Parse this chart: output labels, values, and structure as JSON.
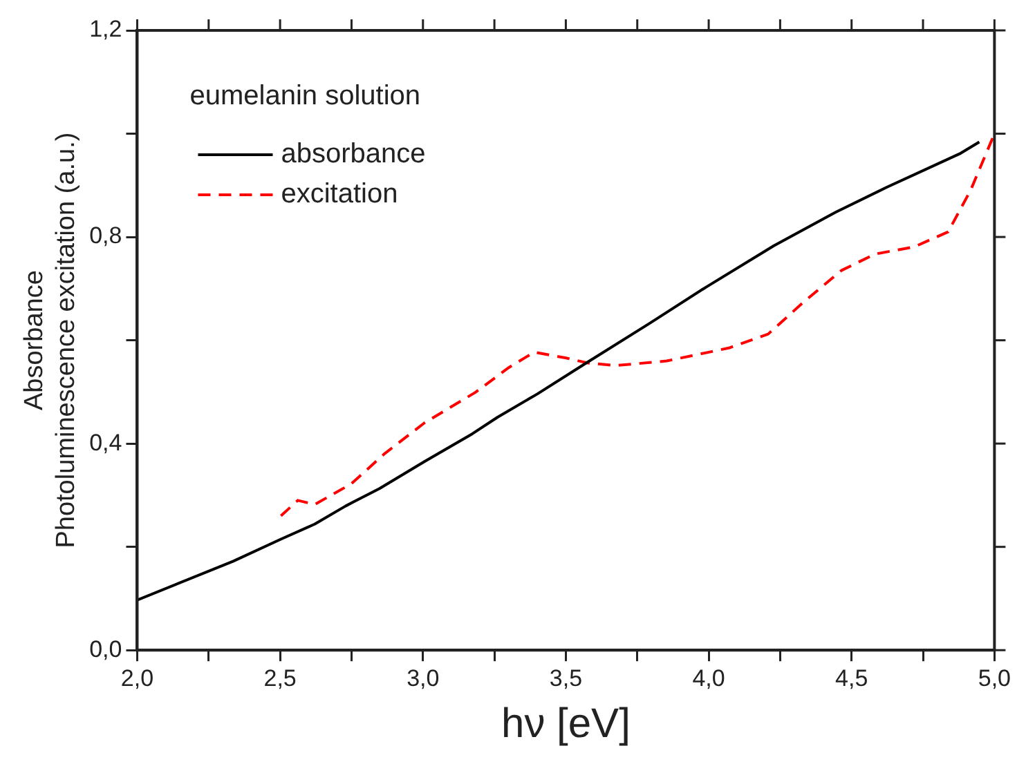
{
  "chart_data": {
    "type": "line",
    "xlabel": "hν [eV]",
    "ylabel": "Absorbance\nPhotoluminescence excitation (a.u.)",
    "legend_title": "eumelanin solution",
    "legend": "top left",
    "grid": false,
    "series": [
      {
        "name": "absorbance",
        "color": "#000000",
        "line_style": "solid",
        "x": [
          2.0,
          2.335,
          2.503,
          2.621,
          2.729,
          2.848,
          3.005,
          3.173,
          3.261,
          3.4,
          3.577,
          3.794,
          3.991,
          4.228,
          4.444,
          4.622,
          4.878,
          4.947
        ],
        "values": [
          0.097,
          0.172,
          0.215,
          0.244,
          0.279,
          0.313,
          0.365,
          0.419,
          0.451,
          0.496,
          0.558,
          0.633,
          0.703,
          0.783,
          0.848,
          0.896,
          0.961,
          0.984
        ]
      },
      {
        "name": "excitation",
        "color": "#ff0000",
        "line_style": "dashed",
        "x": [
          2.503,
          2.562,
          2.621,
          2.749,
          2.867,
          3.005,
          3.183,
          3.3,
          3.389,
          3.498,
          3.577,
          3.675,
          3.853,
          4.07,
          4.208,
          4.326,
          4.464,
          4.582,
          4.72,
          4.838,
          4.917,
          5.0
        ],
        "values": [
          0.26,
          0.29,
          0.282,
          0.322,
          0.381,
          0.44,
          0.499,
          0.547,
          0.577,
          0.566,
          0.556,
          0.551,
          0.56,
          0.585,
          0.612,
          0.671,
          0.735,
          0.767,
          0.781,
          0.81,
          0.891,
          1.0
        ]
      }
    ],
    "xlim": [
      2.0,
      5.0
    ],
    "xticks": [
      {
        "value": 2.0,
        "label": "2,0"
      },
      {
        "value": 2.25,
        "label": null
      },
      {
        "value": 2.5,
        "label": "2,5"
      },
      {
        "value": 2.75,
        "label": null
      },
      {
        "value": 3.0,
        "label": "3,0"
      },
      {
        "value": 3.25,
        "label": null
      },
      {
        "value": 3.5,
        "label": "3,5"
      },
      {
        "value": 3.75,
        "label": null
      },
      {
        "value": 4.0,
        "label": "4,0"
      },
      {
        "value": 4.25,
        "label": null
      },
      {
        "value": 4.5,
        "label": "4,5"
      },
      {
        "value": 4.75,
        "label": null
      },
      {
        "value": 5.0,
        "label": "5,0"
      }
    ],
    "ylim": [
      0.0,
      1.2
    ],
    "yticks": [
      {
        "value": 0.0,
        "label": "0,0"
      },
      {
        "value": 0.2,
        "label": null
      },
      {
        "value": 0.4,
        "label": "0,4"
      },
      {
        "value": 0.6,
        "label": null
      },
      {
        "value": 0.8,
        "label": "0,8"
      },
      {
        "value": 1.0,
        "label": null
      },
      {
        "value": 1.2,
        "label": "1,2"
      }
    ]
  }
}
